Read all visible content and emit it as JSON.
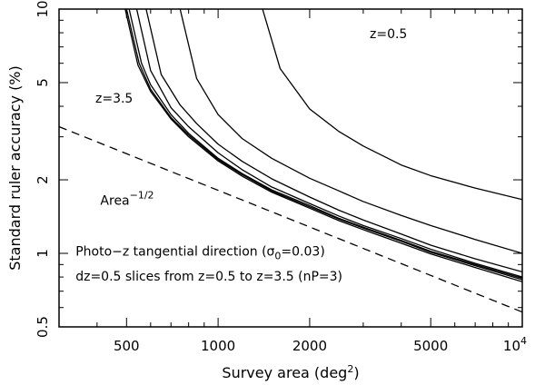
{
  "chart_data": {
    "type": "line",
    "xlabel": "Survey area (deg²)",
    "ylabel": "Standard ruler accuracy (%)",
    "xscale": "log",
    "yscale": "log",
    "xlim": [
      300,
      10000
    ],
    "ylim": [
      0.5,
      10
    ],
    "x_ticks": [
      {
        "value": 500,
        "label": "500"
      },
      {
        "value": 1000,
        "label": "1000"
      },
      {
        "value": 2000,
        "label": "2000"
      },
      {
        "value": 5000,
        "label": "5000"
      },
      {
        "value": 10000,
        "label": "10",
        "sup": "4"
      }
    ],
    "y_ticks": [
      {
        "value": 0.5,
        "label": "0.5"
      },
      {
        "value": 1,
        "label": "1"
      },
      {
        "value": 2,
        "label": "2"
      },
      {
        "value": 5,
        "label": "5"
      },
      {
        "value": 10,
        "label": "10"
      }
    ],
    "series": [
      {
        "name": "z=0.5",
        "x": [
          1400,
          1600,
          2000,
          2500,
          3000,
          4000,
          5000,
          7000,
          10000
        ],
        "y": [
          10,
          5.7,
          3.9,
          3.15,
          2.75,
          2.3,
          2.08,
          1.85,
          1.66
        ]
      },
      {
        "x": [
          750,
          850,
          1000,
          1200,
          1500,
          2000,
          2500,
          3000,
          4000,
          5000,
          7000,
          10000
        ],
        "y": [
          10,
          5.2,
          3.7,
          2.95,
          2.45,
          2.03,
          1.8,
          1.63,
          1.43,
          1.3,
          1.14,
          1.0
        ]
      },
      {
        "x": [
          580,
          650,
          750,
          850,
          1000,
          1200,
          1500,
          2000,
          2500,
          3000,
          4000,
          5000,
          7000,
          10000
        ],
        "y": [
          10,
          5.4,
          4.05,
          3.4,
          2.8,
          2.38,
          2.02,
          1.7,
          1.5,
          1.37,
          1.2,
          1.08,
          0.95,
          0.84
        ]
      },
      {
        "x": [
          540,
          600,
          700,
          800,
          1000,
          1200,
          1500,
          2000,
          2500,
          3000,
          4000,
          5000,
          7000,
          10000
        ],
        "y": [
          10,
          5.6,
          3.95,
          3.3,
          2.58,
          2.2,
          1.87,
          1.6,
          1.42,
          1.3,
          1.15,
          1.04,
          0.91,
          0.8
        ]
      },
      {
        "x": [
          510,
          560,
          600,
          700,
          800,
          1000,
          1200,
          1500,
          2000,
          2500,
          3000,
          4000,
          5000,
          7000,
          10000
        ],
        "y": [
          10,
          6.0,
          4.9,
          3.7,
          3.1,
          2.45,
          2.12,
          1.82,
          1.57,
          1.39,
          1.28,
          1.13,
          1.02,
          0.9,
          0.79
        ]
      },
      {
        "x": [
          500,
          550,
          600,
          700,
          800,
          1000,
          1200,
          1500,
          2000,
          2500,
          3000,
          4000,
          5000,
          7000,
          10000
        ],
        "y": [
          10,
          6.0,
          4.7,
          3.6,
          3.05,
          2.42,
          2.1,
          1.8,
          1.55,
          1.38,
          1.27,
          1.12,
          1.01,
          0.89,
          0.78
        ]
      },
      {
        "name": "z=3.5",
        "x": [
          495,
          545,
          600,
          700,
          800,
          1000,
          1200,
          1500,
          2000,
          2500,
          3000,
          4000,
          5000,
          7000,
          10000
        ],
        "y": [
          10,
          5.9,
          4.6,
          3.55,
          3.0,
          2.39,
          2.07,
          1.78,
          1.53,
          1.36,
          1.25,
          1.1,
          0.995,
          0.875,
          0.765
        ]
      },
      {
        "name": "Area",
        "name_sup": "−1/2",
        "dashed": true,
        "x": [
          300,
          10000
        ],
        "y": [
          3.3,
          0.575
        ]
      }
    ],
    "annotations": [
      {
        "text": "z=0.5",
        "x": 3150,
        "y": 7.6
      },
      {
        "text": "z=3.5",
        "x": 395,
        "y": 4.15
      },
      {
        "text": "Area",
        "sup": "−1/2",
        "x": 410,
        "y": 1.58
      },
      {
        "text": "Photo−z tangential direction (σ",
        "sub": "0",
        "text2": "=0.03)",
        "x": 340,
        "y": 0.98
      },
      {
        "text": "dz=0.5 slices from z=0.5 to z=3.5 (nP=3)",
        "x": 340,
        "y": 0.775
      }
    ],
    "grid": false,
    "legend": "none"
  }
}
